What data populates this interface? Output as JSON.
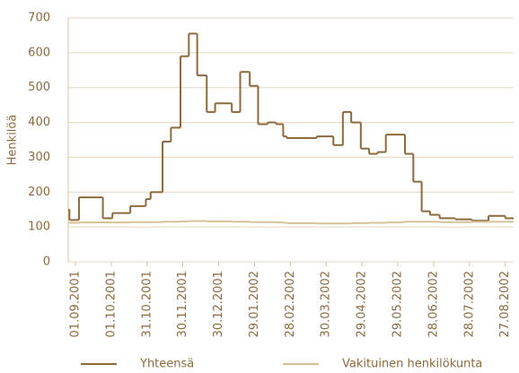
{
  "chart_data": {
    "type": "step",
    "y_label": "Henkilöä",
    "x": [
      "2001-08-26",
      "2001-08-27",
      "2001-09-04",
      "2001-09-24",
      "2001-10-02",
      "2001-10-17",
      "2001-10-30",
      "2001-11-03",
      "2001-11-13",
      "2001-11-20",
      "2001-11-28",
      "2001-12-05",
      "2001-12-12",
      "2001-12-20",
      "2001-12-27",
      "2002-01-10",
      "2002-01-17",
      "2002-01-25",
      "2002-02-01",
      "2002-02-09",
      "2002-02-16",
      "2002-02-22",
      "2002-02-25",
      "2002-03-22",
      "2002-04-05",
      "2002-04-13",
      "2002-04-20",
      "2002-04-28",
      "2002-05-05",
      "2002-05-12",
      "2002-05-19",
      "2002-06-01",
      "2002-06-04",
      "2002-06-11",
      "2002-06-18",
      "2002-06-25",
      "2002-07-03",
      "2002-07-16",
      "2002-07-30",
      "2002-08-13",
      "2002-08-27"
    ],
    "series": [
      {
        "name": "Yhteensä",
        "color": "#8b6a3e",
        "values": [
          150,
          120,
          185,
          125,
          140,
          160,
          180,
          200,
          345,
          385,
          590,
          655,
          535,
          430,
          455,
          430,
          545,
          505,
          395,
          400,
          395,
          360,
          355,
          360,
          335,
          430,
          400,
          325,
          310,
          315,
          365,
          365,
          310,
          230,
          145,
          135,
          125,
          122,
          118,
          132,
          125
        ]
      },
      {
        "name": "Vakituinen henkilökunta",
        "color": "#d6c195",
        "values": [
          112,
          112,
          113,
          113,
          113,
          114,
          114,
          114,
          115,
          115,
          116,
          117,
          117,
          116,
          116,
          115,
          115,
          114,
          114,
          114,
          113,
          112,
          111,
          110,
          110,
          110,
          111,
          111,
          112,
          112,
          113,
          114,
          115,
          115,
          115,
          115,
          114,
          114,
          115,
          115,
          115
        ]
      }
    ],
    "xlim": [
      "2001-08-26",
      "2002-09-03"
    ],
    "xticks": [
      {
        "value": "2001-09-01",
        "label": "01.09.2001"
      },
      {
        "value": "2001-10-01",
        "label": "01.10.2001"
      },
      {
        "value": "2001-10-31",
        "label": "31.10.2001"
      },
      {
        "value": "2001-11-30",
        "label": "30.11.2001"
      },
      {
        "value": "2001-12-30",
        "label": "30.12.2001"
      },
      {
        "value": "2002-01-29",
        "label": "29.01.2002"
      },
      {
        "value": "2002-02-28",
        "label": "28.02.2002"
      },
      {
        "value": "2002-03-30",
        "label": "30.03.2002"
      },
      {
        "value": "2002-04-29",
        "label": "29.04.2002"
      },
      {
        "value": "2002-05-29",
        "label": "29.05.2002"
      },
      {
        "value": "2002-06-28",
        "label": "28.06.2002"
      },
      {
        "value": "2002-07-28",
        "label": "28.07.2002"
      },
      {
        "value": "2002-08-27",
        "label": "27.08.2002"
      }
    ],
    "ylim": [
      0,
      700
    ],
    "yticks": [
      0,
      100,
      200,
      300,
      400,
      500,
      600,
      700
    ],
    "grid": true,
    "legend": "bottom"
  }
}
